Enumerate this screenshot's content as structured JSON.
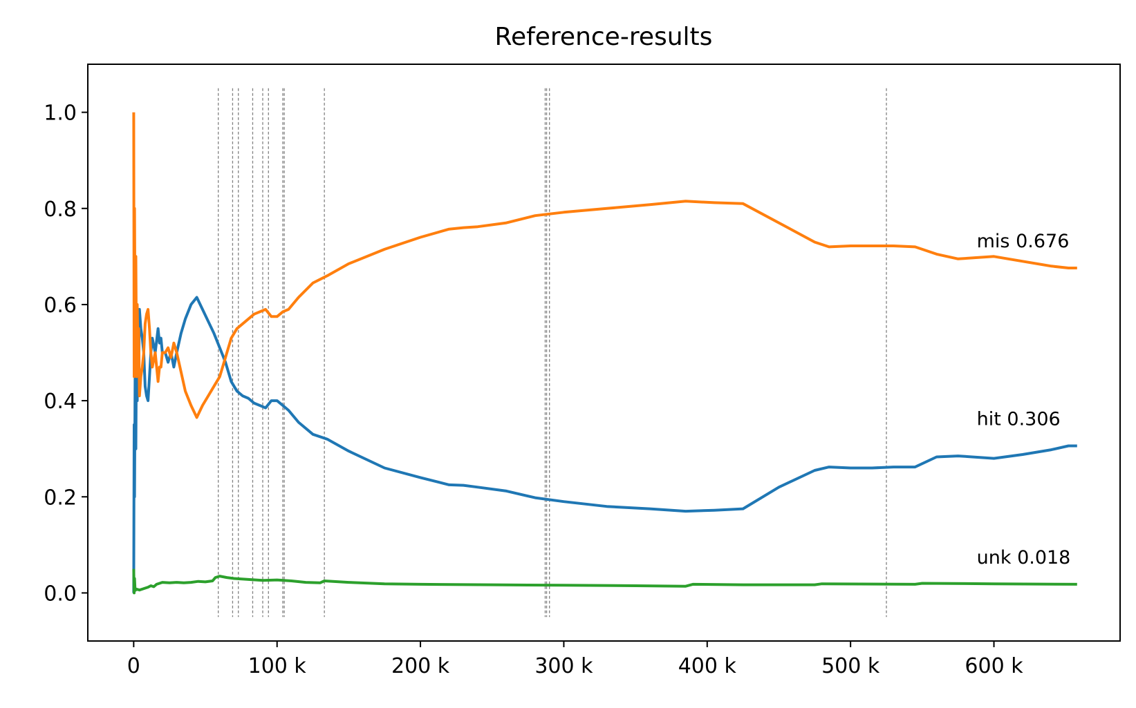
{
  "chart_data": {
    "type": "line",
    "title": "Reference-results",
    "xlabel": "",
    "ylabel": "",
    "xlim": [
      -32000,
      688000
    ],
    "ylim": [
      -0.1,
      1.1
    ],
    "x_ticks": [
      0,
      100000,
      200000,
      300000,
      400000,
      500000,
      600000
    ],
    "x_tick_labels": [
      "0",
      "100 k",
      "200 k",
      "300 k",
      "400 k",
      "500 k",
      "600 k"
    ],
    "y_ticks": [
      0.0,
      0.2,
      0.4,
      0.6,
      0.8,
      1.0
    ],
    "y_tick_labels": [
      "0.0",
      "0.2",
      "0.4",
      "0.6",
      "0.8",
      "1.0"
    ],
    "grid": false,
    "legend": "none",
    "vlines": {
      "x": [
        59000,
        69000,
        73000,
        83000,
        90000,
        94000,
        104000,
        105000,
        133000,
        287000,
        288000,
        290000,
        525000
      ],
      "ymin": -0.05,
      "ymax": 1.05,
      "color": "#808080",
      "style": "dashed"
    },
    "series": [
      {
        "color": "#1f77b4",
        "end_label": "hit 0.306",
        "x": [
          0,
          300,
          600,
          1000,
          1500,
          2000,
          2500,
          3000,
          3500,
          4000,
          5000,
          6000,
          7000,
          8000,
          9000,
          10000,
          11000,
          12000,
          13000,
          15000,
          17000,
          18000,
          19000,
          20000,
          22000,
          24000,
          26000,
          28000,
          30000,
          33000,
          36000,
          40000,
          44000,
          48000,
          52000,
          56000,
          60000,
          64000,
          68000,
          72000,
          76000,
          80000,
          84000,
          88000,
          92000,
          96000,
          100000,
          104000,
          108000,
          115000,
          125000,
          135000,
          150000,
          175000,
          200000,
          220000,
          230000,
          240000,
          260000,
          280000,
          300000,
          330000,
          360000,
          385000,
          405000,
          425000,
          450000,
          475000,
          485000,
          500000,
          515000,
          530000,
          545000,
          560000,
          575000,
          600000,
          620000,
          640000,
          652000,
          658000
        ],
        "y": [
          0.0,
          0.35,
          0.2,
          0.45,
          0.3,
          0.55,
          0.4,
          0.5,
          0.45,
          0.59,
          0.55,
          0.53,
          0.5,
          0.43,
          0.41,
          0.4,
          0.45,
          0.5,
          0.53,
          0.5,
          0.55,
          0.52,
          0.53,
          0.5,
          0.5,
          0.48,
          0.5,
          0.47,
          0.5,
          0.54,
          0.57,
          0.6,
          0.615,
          0.59,
          0.565,
          0.54,
          0.51,
          0.48,
          0.44,
          0.42,
          0.41,
          0.405,
          0.395,
          0.39,
          0.385,
          0.4,
          0.4,
          0.39,
          0.38,
          0.355,
          0.33,
          0.32,
          0.295,
          0.26,
          0.24,
          0.225,
          0.224,
          0.22,
          0.212,
          0.198,
          0.19,
          0.18,
          0.175,
          0.17,
          0.172,
          0.175,
          0.22,
          0.255,
          0.262,
          0.26,
          0.26,
          0.262,
          0.262,
          0.283,
          0.285,
          0.28,
          0.288,
          0.298,
          0.306,
          0.306
        ]
      },
      {
        "color": "#ff7f0e",
        "end_label": "mis 0.676",
        "x": [
          0,
          300,
          600,
          1000,
          1500,
          2000,
          2500,
          3000,
          3500,
          4000,
          5000,
          6000,
          7000,
          8000,
          9000,
          10000,
          11000,
          12000,
          13000,
          15000,
          17000,
          18000,
          19000,
          20000,
          22000,
          24000,
          26000,
          28000,
          30000,
          33000,
          36000,
          40000,
          44000,
          48000,
          52000,
          56000,
          60000,
          64000,
          68000,
          72000,
          76000,
          80000,
          84000,
          88000,
          92000,
          96000,
          100000,
          104000,
          108000,
          115000,
          125000,
          135000,
          150000,
          175000,
          200000,
          220000,
          230000,
          240000,
          260000,
          280000,
          300000,
          330000,
          360000,
          385000,
          405000,
          425000,
          450000,
          475000,
          485000,
          500000,
          515000,
          530000,
          545000,
          560000,
          575000,
          600000,
          620000,
          640000,
          652000,
          658000
        ],
        "y": [
          1.0,
          0.45,
          0.8,
          0.55,
          0.7,
          0.45,
          0.6,
          0.5,
          0.55,
          0.41,
          0.45,
          0.47,
          0.5,
          0.56,
          0.58,
          0.59,
          0.55,
          0.5,
          0.47,
          0.5,
          0.44,
          0.47,
          0.47,
          0.5,
          0.5,
          0.51,
          0.49,
          0.52,
          0.5,
          0.46,
          0.42,
          0.39,
          0.365,
          0.39,
          0.41,
          0.43,
          0.45,
          0.49,
          0.53,
          0.55,
          0.56,
          0.57,
          0.58,
          0.585,
          0.59,
          0.575,
          0.575,
          0.585,
          0.59,
          0.615,
          0.645,
          0.66,
          0.685,
          0.715,
          0.74,
          0.757,
          0.76,
          0.762,
          0.77,
          0.785,
          0.792,
          0.8,
          0.808,
          0.815,
          0.812,
          0.81,
          0.77,
          0.73,
          0.72,
          0.722,
          0.722,
          0.722,
          0.72,
          0.705,
          0.695,
          0.7,
          0.69,
          0.68,
          0.676,
          0.676
        ]
      },
      {
        "color": "#2ca02c",
        "end_label": "unk 0.018",
        "x": [
          0,
          300,
          600,
          1000,
          2000,
          4000,
          6000,
          8000,
          10000,
          12000,
          14000,
          16000,
          18000,
          20000,
          25000,
          30000,
          35000,
          40000,
          45000,
          50000,
          55000,
          57000,
          60000,
          65000,
          70000,
          80000,
          90000,
          100000,
          110000,
          120000,
          130000,
          133000,
          150000,
          175000,
          200000,
          250000,
          300000,
          350000,
          385000,
          390000,
          425000,
          475000,
          480000,
          545000,
          550000,
          600000,
          658000
        ],
        "y": [
          0.05,
          0.0,
          0.03,
          0.005,
          0.008,
          0.006,
          0.008,
          0.01,
          0.012,
          0.015,
          0.013,
          0.018,
          0.02,
          0.022,
          0.021,
          0.022,
          0.021,
          0.022,
          0.024,
          0.023,
          0.025,
          0.032,
          0.035,
          0.032,
          0.03,
          0.028,
          0.026,
          0.027,
          0.025,
          0.022,
          0.021,
          0.025,
          0.022,
          0.019,
          0.018,
          0.017,
          0.016,
          0.015,
          0.014,
          0.018,
          0.017,
          0.017,
          0.019,
          0.018,
          0.02,
          0.019,
          0.018
        ]
      }
    ]
  }
}
